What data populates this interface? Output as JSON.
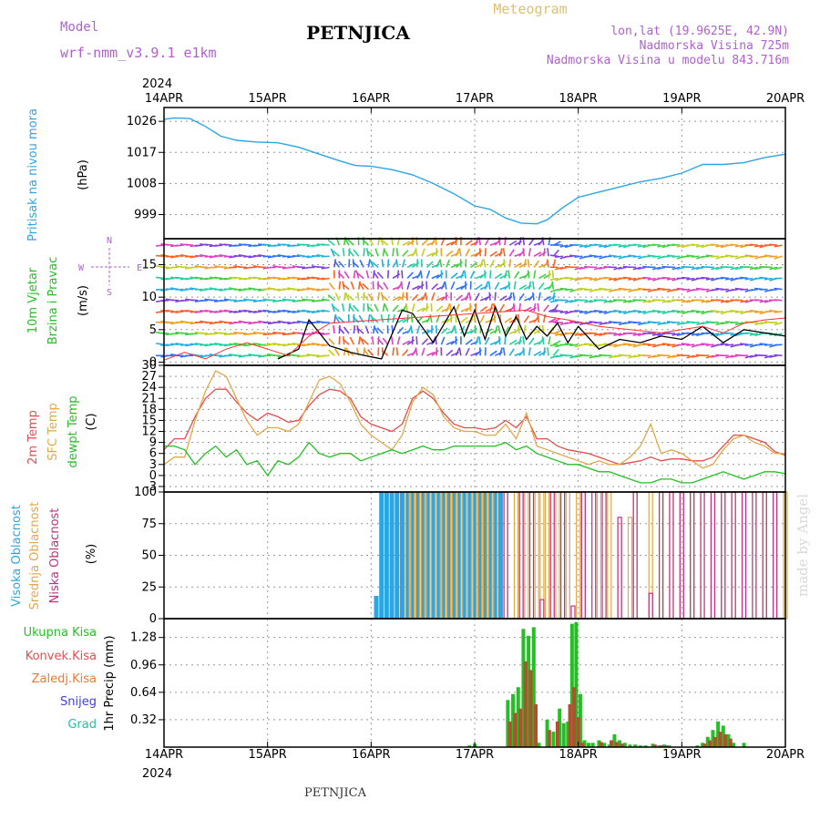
{
  "header": {
    "model_label": "Model",
    "model_name": "wrf-nmm_v3.9.1 e1km",
    "station": "PETNJICA",
    "meteogram": "Meteogram",
    "coords": "lon,lat (19.9625E, 42.9N)",
    "elevation": "Nadmorska Visina 725m",
    "model_elevation": "Nadmorska Visina u modelu 843.716m",
    "footer_station": "PETNJICA",
    "watermark": "made by Angel"
  },
  "colors": {
    "pressure": "#2aa6e6",
    "wind_speed": "#000000",
    "gust": "#ff3030",
    "t2m": "#e84a4a",
    "sfc": "#e0a84a",
    "dew": "#22c022",
    "high_cloud": "#2aa6e6",
    "mid_cloud": "#e0a84a",
    "low_cloud": "#c03080",
    "precip_total": "#22c022",
    "precip_conv": "#b05030",
    "purple_text": "#b060d0"
  },
  "time_axis": {
    "year": "2024",
    "labels": [
      "14APR",
      "15APR",
      "16APR",
      "17APR",
      "18APR",
      "19APR",
      "20APR"
    ]
  },
  "chart_data": [
    {
      "type": "line",
      "panel": "pressure",
      "ylabel": "Pritisak na nivou mora",
      "unit": "(hPa)",
      "yticks": [
        999,
        1008,
        1017,
        1026
      ],
      "ylim": [
        992,
        1030
      ],
      "grid": true,
      "series": [
        {
          "x": [
            0,
            0.1,
            0.25,
            0.4,
            0.55,
            0.7,
            0.9,
            1.1,
            1.3,
            1.5,
            1.7,
            1.85,
            2.0,
            2.2,
            2.4,
            2.6,
            2.8,
            3.0,
            3.15,
            3.3,
            3.45,
            3.6,
            3.7,
            3.85,
            4.0,
            4.2,
            4.4,
            4.6,
            4.8,
            5.0,
            5.2,
            5.4,
            5.6,
            5.8,
            6.0
          ],
          "y": [
            1026.6,
            1027.0,
            1026.8,
            1024.5,
            1021.7,
            1020.5,
            1020.0,
            1019.8,
            1018.5,
            1016.5,
            1014.5,
            1013.2,
            1013.0,
            1012.0,
            1010.5,
            1008.0,
            1005.0,
            1001.5,
            1000.5,
            998.0,
            996.5,
            996.3,
            997.5,
            1001.0,
            1004.0,
            1005.5,
            1007.0,
            1008.5,
            1009.5,
            1011.0,
            1013.5,
            1013.5,
            1014.0,
            1015.5,
            1016.5
          ]
        }
      ]
    },
    {
      "type": "line",
      "panel": "wind",
      "ylabel": [
        "10m Vjetar",
        "Brzina i Pravac"
      ],
      "unit": "(m/s)",
      "compass": {
        "n": "N",
        "e": "E",
        "w": "W",
        "s": "S"
      },
      "yticks": [
        0,
        5,
        10,
        15
      ],
      "ylim": [
        -0.5,
        19
      ],
      "grid": true,
      "series": [
        {
          "name": "speed",
          "x": [
            1.1,
            1.3,
            1.4,
            1.6,
            1.8,
            2.0,
            2.1,
            2.3,
            2.4,
            2.6,
            2.8,
            2.9,
            3.0,
            3.1,
            3.2,
            3.3,
            3.4,
            3.5,
            3.6,
            3.7,
            3.8,
            3.9,
            4.0,
            4.2,
            4.4,
            4.6,
            4.8,
            5.0,
            5.2,
            5.4,
            5.6,
            5.8,
            6.0
          ],
          "y": [
            0.5,
            2.0,
            6.5,
            2.5,
            1.5,
            0.8,
            0.5,
            8.0,
            7.5,
            3.0,
            8.5,
            4.0,
            8.0,
            3.5,
            8.5,
            4.0,
            7.0,
            3.5,
            5.5,
            4.0,
            6.0,
            3.0,
            5.5,
            2.0,
            3.5,
            3.0,
            4.0,
            3.5,
            5.5,
            3.0,
            5.0,
            4.5,
            4.0
          ]
        },
        {
          "name": "gust",
          "x": [
            0,
            0.2,
            0.4,
            0.6,
            0.8,
            1.0,
            1.2,
            1.4,
            1.6,
            3.5,
            3.7,
            3.9,
            4.2,
            4.5,
            4.8,
            5.0,
            5.2,
            5.4,
            5.6,
            5.8,
            6.0
          ],
          "y": [
            0.3,
            1.5,
            0.5,
            2.0,
            3.0,
            2.0,
            1.0,
            4.0,
            6.0,
            8.0,
            7.0,
            6.5,
            5.5,
            5.0,
            4.5,
            5.0,
            5.5,
            4.5,
            6.0,
            6.5,
            6.8
          ]
        }
      ]
    },
    {
      "type": "line",
      "panel": "temperature",
      "ylabel": [
        "2m Temp",
        "SFC Temp",
        "dewpt Temp"
      ],
      "unit": "(C)",
      "yticks": [
        -3,
        0,
        3,
        6,
        9,
        12,
        15,
        18,
        21,
        24,
        27,
        30
      ],
      "ylim": [
        -4.5,
        30
      ],
      "grid": true,
      "series": [
        {
          "name": "2m Temp",
          "x": [
            0,
            0.1,
            0.2,
            0.3,
            0.4,
            0.5,
            0.6,
            0.7,
            0.8,
            0.9,
            1.0,
            1.1,
            1.2,
            1.3,
            1.4,
            1.5,
            1.6,
            1.7,
            1.8,
            1.9,
            2.0,
            2.1,
            2.2,
            2.3,
            2.4,
            2.5,
            2.6,
            2.7,
            2.8,
            2.9,
            3.0,
            3.1,
            3.2,
            3.3,
            3.4,
            3.5,
            3.6,
            3.7,
            3.8,
            3.9,
            4.0,
            4.1,
            4.2,
            4.3,
            4.4,
            4.5,
            4.6,
            4.7,
            4.8,
            4.9,
            5.0,
            5.1,
            5.2,
            5.3,
            5.4,
            5.5,
            5.6,
            5.7,
            5.8,
            5.9,
            6.0
          ],
          "y": [
            7,
            10,
            10,
            16,
            21,
            23.5,
            23.5,
            20,
            17,
            15,
            17,
            16,
            14.5,
            15,
            19,
            22,
            23.5,
            23,
            21,
            16,
            14,
            13,
            12,
            14,
            21,
            23,
            21,
            17,
            14,
            13,
            13,
            12.5,
            13,
            15,
            13,
            16,
            10,
            10,
            8,
            7,
            6.5,
            6,
            5,
            4,
            3,
            3.5,
            4,
            5,
            4,
            4.5,
            4.5,
            4,
            4,
            5,
            8,
            11,
            11,
            10,
            9,
            6.5,
            5.5
          ]
        },
        {
          "name": "SFC Temp",
          "x": [
            0,
            0.1,
            0.2,
            0.3,
            0.4,
            0.5,
            0.6,
            0.7,
            0.8,
            0.9,
            1.0,
            1.1,
            1.2,
            1.3,
            1.4,
            1.5,
            1.6,
            1.7,
            1.8,
            1.9,
            2.0,
            2.1,
            2.2,
            2.3,
            2.4,
            2.5,
            2.6,
            2.7,
            2.8,
            2.9,
            3.0,
            3.1,
            3.2,
            3.3,
            3.4,
            3.5,
            3.6,
            3.7,
            3.8,
            3.9,
            4.0,
            4.1,
            4.2,
            4.3,
            4.4,
            4.5,
            4.6,
            4.7,
            4.8,
            4.9,
            5.0,
            5.1,
            5.2,
            5.3,
            5.4,
            5.5,
            5.6,
            5.7,
            5.8,
            5.9,
            6.0
          ],
          "y": [
            3,
            5,
            5,
            15,
            23,
            28.5,
            27,
            21,
            15,
            11,
            13,
            13,
            12,
            14,
            20,
            26,
            27,
            25,
            20,
            14,
            11,
            9,
            7,
            11,
            20,
            24,
            22,
            16,
            13,
            12,
            12,
            11,
            11,
            14,
            10,
            17,
            8,
            7,
            6,
            5,
            4,
            3,
            4,
            3,
            3,
            5,
            8,
            14,
            6,
            7,
            6,
            4,
            2,
            3,
            7,
            10,
            11,
            9,
            8,
            6,
            6
          ]
        },
        {
          "name": "dewpt Temp",
          "x": [
            0,
            0.1,
            0.2,
            0.3,
            0.4,
            0.5,
            0.6,
            0.7,
            0.8,
            0.9,
            1.0,
            1.1,
            1.2,
            1.3,
            1.4,
            1.5,
            1.6,
            1.7,
            1.8,
            1.9,
            2.0,
            2.1,
            2.2,
            2.3,
            2.4,
            2.5,
            2.6,
            2.7,
            2.8,
            2.9,
            3.0,
            3.1,
            3.2,
            3.3,
            3.4,
            3.5,
            3.6,
            3.7,
            3.8,
            3.9,
            4.0,
            4.1,
            4.2,
            4.3,
            4.4,
            4.5,
            4.6,
            4.7,
            4.8,
            4.9,
            5.0,
            5.1,
            5.2,
            5.3,
            5.4,
            5.5,
            5.6,
            5.7,
            5.8,
            5.9,
            6.0
          ],
          "y": [
            8,
            8,
            7,
            3,
            6,
            8,
            5,
            7,
            3,
            4,
            0,
            4,
            3,
            5,
            9,
            6,
            5,
            6,
            6,
            4,
            5,
            6,
            7,
            6,
            7,
            8,
            7,
            7,
            8,
            8,
            8,
            8,
            8,
            9,
            7,
            8,
            6,
            5,
            4,
            3,
            3,
            2,
            1,
            1,
            0,
            -1,
            -2,
            -2,
            -1,
            -1,
            -2,
            -2,
            -1,
            0,
            1,
            0,
            -1,
            0,
            1,
            1,
            0.5
          ]
        }
      ]
    },
    {
      "type": "bar",
      "panel": "cloud",
      "ylabel": [
        "Visoka Oblacnost",
        "Srednja Oblacnost",
        "Niska Oblacnost"
      ],
      "unit": "(%)",
      "yticks": [
        0,
        25,
        50,
        75,
        100
      ],
      "ylim": [
        0,
        100
      ],
      "grid": true,
      "series": [
        {
          "name": "high",
          "x": [
            2.05,
            2.1,
            2.15,
            2.2,
            2.25,
            2.3,
            2.35,
            2.4,
            2.45,
            2.5,
            2.55,
            2.6,
            2.65,
            2.7,
            2.75,
            2.8,
            2.85,
            2.9,
            2.95,
            3.0,
            3.05,
            3.1,
            3.15,
            3.2,
            3.25
          ],
          "values": [
            18,
            100,
            100,
            100,
            100,
            100,
            100,
            100,
            100,
            100,
            100,
            100,
            100,
            100,
            100,
            100,
            100,
            100,
            100,
            100,
            100,
            100,
            100,
            100,
            100
          ]
        },
        {
          "name": "mid",
          "x": [
            2.35,
            2.4,
            2.45,
            2.5,
            2.55,
            2.6,
            2.65,
            2.7,
            2.75,
            2.8,
            2.85,
            2.9,
            2.95,
            3.0,
            3.05,
            3.1,
            3.15,
            3.2,
            3.3,
            3.4,
            3.45,
            3.5,
            3.6,
            3.65,
            3.7,
            3.8,
            3.9,
            4.0,
            4.05,
            4.2,
            4.3,
            4.4,
            4.5,
            4.55,
            4.7,
            4.8,
            4.9,
            5.0,
            5.1,
            5.2,
            5.3,
            5.4,
            5.5,
            5.6,
            5.7,
            5.8,
            5.9,
            6.0
          ],
          "values": [
            100,
            100,
            100,
            100,
            100,
            100,
            100,
            100,
            100,
            100,
            100,
            100,
            100,
            100,
            100,
            100,
            100,
            100,
            100,
            100,
            100,
            100,
            100,
            100,
            100,
            100,
            100,
            100,
            100,
            100,
            100,
            75,
            80,
            100,
            100,
            100,
            100,
            100,
            100,
            100,
            100,
            100,
            100,
            100,
            100,
            100,
            100,
            100
          ]
        },
        {
          "name": "low",
          "x": [
            3.3,
            3.45,
            3.55,
            3.65,
            3.75,
            3.85,
            3.95,
            4.05,
            4.15,
            4.25,
            4.4,
            4.55,
            4.7,
            4.8,
            4.9,
            5.0,
            5.1,
            5.2,
            5.3,
            5.4,
            5.5,
            5.6,
            5.7,
            5.8,
            5.9
          ],
          "values": [
            100,
            100,
            100,
            15,
            100,
            100,
            10,
            100,
            100,
            100,
            80,
            100,
            20,
            100,
            100,
            100,
            100,
            100,
            100,
            100,
            100,
            100,
            100,
            100,
            100
          ]
        }
      ]
    },
    {
      "type": "bar",
      "panel": "precip",
      "ylabel": "1hr Precip (mm)",
      "legend": [
        "Ukupna Kisa",
        "Konvek.Kisa",
        "Zaledj.Kisa",
        "Snijeg",
        "Grad"
      ],
      "legend_colors": [
        "#22c022",
        "#e84a4a",
        "#f07830",
        "#4040e0",
        "#22c0a0"
      ],
      "yticks": [
        0.32,
        0.64,
        0.96,
        1.28
      ],
      "ylim": [
        0,
        1.5
      ],
      "grid": true,
      "series": [
        {
          "name": "Ukupna Kisa",
          "x": [
            2.95,
            3.0,
            3.32,
            3.37,
            3.42,
            3.47,
            3.52,
            3.57,
            3.62,
            3.7,
            3.76,
            3.82,
            3.86,
            3.9,
            3.94,
            3.98,
            4.02,
            4.06,
            4.1,
            4.14,
            4.2,
            4.25,
            4.3,
            4.35,
            4.4,
            4.45,
            4.5,
            4.55,
            4.6,
            4.65,
            4.72,
            4.78,
            4.83,
            4.88,
            5.15,
            5.2,
            5.25,
            5.3,
            5.35,
            5.4,
            5.45,
            5.5,
            5.6
          ],
          "values": [
            0.02,
            0.04,
            0.55,
            0.62,
            0.7,
            1.38,
            1.3,
            1.4,
            0.05,
            0.32,
            0.18,
            0.45,
            0.28,
            0.3,
            1.44,
            1.46,
            0.62,
            0.08,
            0.05,
            0.05,
            0.08,
            0.05,
            0.03,
            0.15,
            0.08,
            0.05,
            0.03,
            0.03,
            0.02,
            0.02,
            0.04,
            0.02,
            0.03,
            0.02,
            0.02,
            0.05,
            0.12,
            0.2,
            0.3,
            0.25,
            0.15,
            0.05,
            0.05
          ]
        },
        {
          "name": "Konvek.Kisa",
          "x": [
            3.34,
            3.39,
            3.44,
            3.49,
            3.54,
            3.59,
            3.72,
            3.8,
            3.92,
            3.96,
            4.0,
            4.04,
            4.22,
            4.32,
            4.37,
            4.42,
            4.74,
            4.8,
            4.85,
            5.22,
            5.27,
            5.32,
            5.37,
            5.42,
            5.47
          ],
          "values": [
            0.3,
            0.4,
            0.45,
            1.0,
            0.9,
            0.5,
            0.2,
            0.3,
            0.5,
            0.7,
            0.35,
            0.05,
            0.06,
            0.08,
            0.06,
            0.04,
            0.03,
            0.02,
            0.02,
            0.04,
            0.08,
            0.12,
            0.18,
            0.15,
            0.1
          ]
        }
      ]
    }
  ]
}
